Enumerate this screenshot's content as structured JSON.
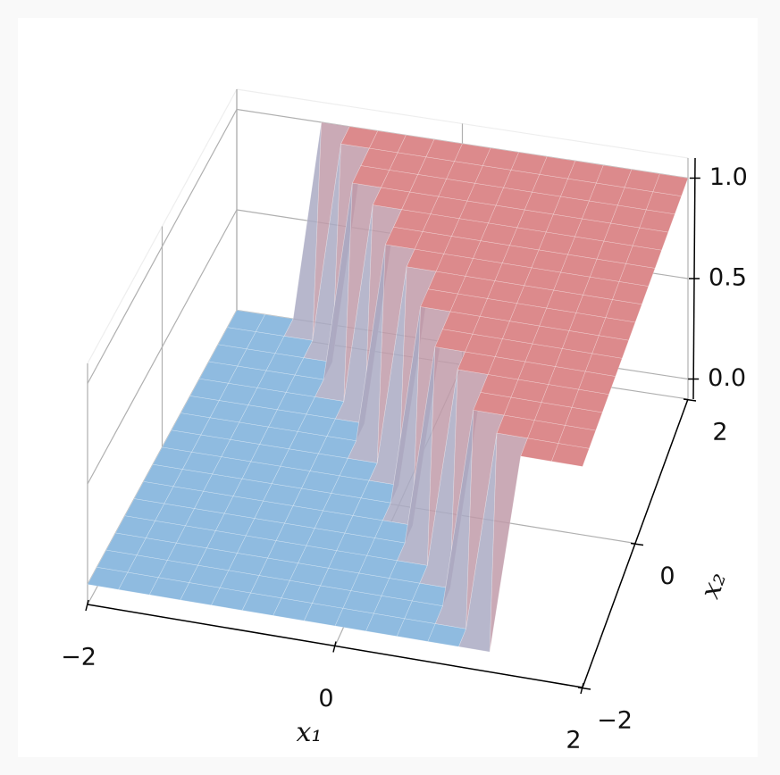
{
  "chart_data": {
    "type": "surface",
    "x_label": "x₁",
    "y_label": "x₂",
    "x": [
      -2,
      -1.75,
      -1.5,
      -1.25,
      -1,
      -0.75,
      -0.5,
      -0.25,
      0,
      0.25,
      0.5,
      0.75,
      1,
      1.25,
      1.5,
      1.75,
      2
    ],
    "y": [
      -2,
      -1.75,
      -1.5,
      -1.25,
      -1,
      -0.75,
      -0.5,
      -0.25,
      0,
      0.25,
      0.5,
      0.75,
      1,
      1.25,
      1.5,
      1.75,
      2
    ],
    "z": [
      [
        0,
        0,
        0,
        0,
        0,
        0,
        0,
        0,
        0,
        0,
        0,
        0,
        0,
        0,
        1,
        1,
        1
      ],
      [
        0,
        0,
        0,
        0,
        0,
        0,
        0,
        0,
        0,
        0,
        0,
        0,
        0,
        1,
        1,
        1,
        1
      ],
      [
        0,
        0,
        0,
        0,
        0,
        0,
        0,
        0,
        0,
        0,
        0,
        0,
        1,
        1,
        1,
        1,
        1
      ],
      [
        0,
        0,
        0,
        0,
        0,
        0,
        0,
        0,
        0,
        0,
        0,
        0,
        1,
        1,
        1,
        1,
        1
      ],
      [
        0,
        0,
        0,
        0,
        0,
        0,
        0,
        0,
        0,
        0,
        0,
        1,
        1,
        1,
        1,
        1,
        1
      ],
      [
        0,
        0,
        0,
        0,
        0,
        0,
        0,
        0,
        0,
        0,
        1,
        1,
        1,
        1,
        1,
        1,
        1
      ],
      [
        0,
        0,
        0,
        0,
        0,
        0,
        0,
        0,
        0,
        0,
        1,
        1,
        1,
        1,
        1,
        1,
        1
      ],
      [
        0,
        0,
        0,
        0,
        0,
        0,
        0,
        0,
        0,
        1,
        1,
        1,
        1,
        1,
        1,
        1,
        1
      ],
      [
        0,
        0,
        0,
        0,
        0,
        0,
        0,
        0,
        0,
        1,
        1,
        1,
        1,
        1,
        1,
        1,
        1
      ],
      [
        0,
        0,
        0,
        0,
        0,
        0,
        0,
        0,
        1,
        1,
        1,
        1,
        1,
        1,
        1,
        1,
        1
      ],
      [
        0,
        0,
        0,
        0,
        0,
        0,
        0,
        1,
        1,
        1,
        1,
        1,
        1,
        1,
        1,
        1,
        1
      ],
      [
        0,
        0,
        0,
        0,
        0,
        0,
        0,
        1,
        1,
        1,
        1,
        1,
        1,
        1,
        1,
        1,
        1
      ],
      [
        0,
        0,
        0,
        0,
        0,
        0,
        1,
        1,
        1,
        1,
        1,
        1,
        1,
        1,
        1,
        1,
        1
      ],
      [
        0,
        0,
        0,
        0,
        0,
        1,
        1,
        1,
        1,
        1,
        1,
        1,
        1,
        1,
        1,
        1,
        1
      ],
      [
        0,
        0,
        0,
        0,
        0,
        1,
        1,
        1,
        1,
        1,
        1,
        1,
        1,
        1,
        1,
        1,
        1
      ],
      [
        0,
        0,
        0,
        0,
        1,
        1,
        1,
        1,
        1,
        1,
        1,
        1,
        1,
        1,
        1,
        1,
        1
      ],
      [
        0,
        0,
        0,
        1,
        1,
        1,
        1,
        1,
        1,
        1,
        1,
        1,
        1,
        1,
        1,
        1,
        1
      ]
    ],
    "color_low": "#8fbbe0",
    "color_high": "#dc8a8c",
    "xlim": [
      -2,
      2
    ],
    "ylim": [
      -2,
      2
    ],
    "zlim": [
      -0.1,
      1.1
    ],
    "xticks": [
      {
        "value": -2,
        "label": "−2"
      },
      0,
      2
    ],
    "yticks": [
      {
        "value": -2,
        "label": "−2"
      },
      0,
      2
    ],
    "zticks": [
      {
        "value": 0,
        "label": "0.0"
      },
      {
        "value": 0.5,
        "label": "0.5"
      },
      {
        "value": 1,
        "label": "1.0"
      }
    ],
    "grid": true
  }
}
